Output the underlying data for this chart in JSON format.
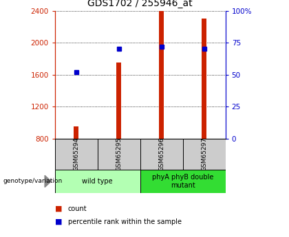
{
  "title": "GDS1702 / 255946_at",
  "categories": [
    "GSM65294",
    "GSM65295",
    "GSM65296",
    "GSM65297"
  ],
  "count_values": [
    950,
    1750,
    2400,
    2300
  ],
  "percentile_values": [
    52,
    70,
    72,
    70
  ],
  "left_ylim": [
    800,
    2400
  ],
  "right_ylim": [
    0,
    100
  ],
  "left_yticks": [
    800,
    1200,
    1600,
    2000,
    2400
  ],
  "right_yticks": [
    0,
    25,
    50,
    75,
    100
  ],
  "right_yticklabels": [
    "0",
    "25",
    "50",
    "75",
    "100%"
  ],
  "bar_color": "#cc2200",
  "blue_color": "#0000cc",
  "group_labels": [
    "wild type",
    "phyA phyB double\nmutant"
  ],
  "group_ranges": [
    [
      0,
      2
    ],
    [
      2,
      4
    ]
  ],
  "group_color_light": "#b3ffb3",
  "group_color_bright": "#33dd33",
  "label_x_text": "genotype/variation",
  "legend_count": "count",
  "legend_pct": "percentile rank within the sample",
  "bar_width": 0.12,
  "title_fontsize": 10,
  "tick_fontsize": 7.5,
  "sample_box_color": "#cccccc"
}
